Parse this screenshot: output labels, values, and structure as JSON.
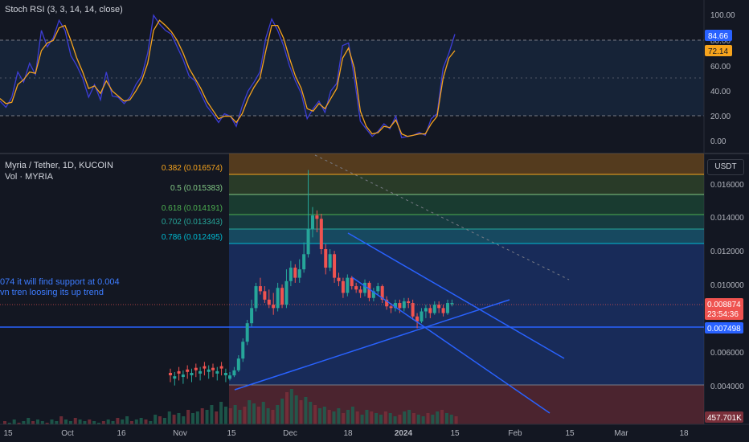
{
  "indicator": {
    "title": "Stoch RSI (3, 3, 14, 14, close)",
    "k_value": "84.66",
    "d_value": "72.14",
    "scale": [
      "100.00",
      "80.00",
      "60.00",
      "40.00",
      "20.00",
      "0.00"
    ]
  },
  "main": {
    "title": "Myria / Tether, 1D, KUCOIN",
    "volume_label": "Vol · MYRIA",
    "currency_button": "USDT",
    "price_scale": [
      "0.016000",
      "0.014000",
      "0.012000",
      "0.010000",
      "0.008000",
      "0.006000",
      "0.004000"
    ],
    "last_price": "0.008874",
    "countdown": "23:54:36",
    "support_price": "0.007498",
    "volume_value": "457.701K",
    "note_line1": "074 it will find support at 0.004",
    "note_line2": "vn tren loosing its up trend"
  },
  "fib_levels": [
    {
      "ratio": "0.382",
      "price": "0.016574",
      "label": "0.382 (0.016574)",
      "color": "#f7a41d"
    },
    {
      "ratio": "0.5",
      "price": "0.015383",
      "label": "0.5 (0.015383)",
      "color": "#81c784"
    },
    {
      "ratio": "0.618",
      "price": "0.014191",
      "label": "0.618 (0.014191)",
      "color": "#4caf50"
    },
    {
      "ratio": "0.702",
      "price": "0.013343",
      "label": "0.702 (0.013343)",
      "color": "#26a69a"
    },
    {
      "ratio": "0.786",
      "price": "0.012495",
      "label": "0.786 (0.012495)",
      "color": "#00bcd4"
    }
  ],
  "time_axis": [
    "15",
    "Oct",
    "16",
    "Nov",
    "15",
    "Dec",
    "18",
    "2024",
    "15",
    "Feb",
    "15",
    "Mar",
    "18"
  ],
  "colors": {
    "up": "#26a69a",
    "down": "#ef5350",
    "trendline": "#2962ff",
    "k_line": "#3d3dd6",
    "d_line": "#f7a41d"
  },
  "chart_data": [
    {
      "type": "line",
      "title": "Stoch RSI (3, 3, 14, 14, close)",
      "ylim": [
        0,
        100
      ],
      "series": [
        {
          "name": "K",
          "values": [
            32,
            27,
            35,
            55,
            47,
            62,
            53,
            88,
            75,
            82,
            96,
            88,
            68,
            60,
            50,
            35,
            45,
            33,
            55,
            36,
            35,
            30,
            35,
            45,
            52,
            70,
            100,
            93,
            88,
            85,
            75,
            65,
            52,
            48,
            38,
            28,
            22,
            15,
            22,
            20,
            12,
            28,
            40,
            47,
            55,
            82,
            97,
            88,
            76,
            60,
            48,
            38,
            18,
            26,
            32,
            23,
            40,
            46,
            76,
            78,
            50,
            16,
            10,
            4,
            8,
            14,
            10,
            20,
            3,
            4,
            5,
            7,
            5,
            18,
            22,
            58,
            70,
            85
          ]
        },
        {
          "name": "D",
          "values": [
            34,
            30,
            31,
            45,
            49,
            55,
            54,
            72,
            78,
            80,
            90,
            92,
            80,
            66,
            55,
            42,
            44,
            38,
            48,
            40,
            36,
            32,
            33,
            40,
            48,
            62,
            88,
            96,
            92,
            87,
            80,
            70,
            58,
            50,
            42,
            32,
            25,
            18,
            20,
            20,
            15,
            22,
            34,
            43,
            50,
            72,
            92,
            92,
            82,
            66,
            52,
            42,
            26,
            24,
            30,
            26,
            34,
            42,
            66,
            74,
            58,
            24,
            12,
            6,
            7,
            12,
            11,
            17,
            6,
            4,
            5,
            6,
            6,
            14,
            20,
            50,
            66,
            72
          ]
        }
      ]
    },
    {
      "type": "candlestick",
      "title": "Myria / Tether, 1D, KUCOIN",
      "ylabel": "USDT",
      "ylim": [
        0.0033,
        0.0178
      ],
      "x": [
        "2023-11-24",
        "2023-11-25",
        "2023-11-26",
        "2023-11-27",
        "2023-11-28",
        "2023-11-29",
        "2023-11-30",
        "2023-12-01",
        "2023-12-02",
        "2023-12-03",
        "2023-12-04",
        "2023-12-05",
        "2023-12-06",
        "2023-12-07",
        "2023-12-08",
        "2023-12-09",
        "2023-12-10",
        "2023-12-11",
        "2023-12-12",
        "2023-12-13",
        "2023-12-14",
        "2023-12-15",
        "2023-12-16",
        "2023-12-17",
        "2023-12-18",
        "2023-12-19",
        "2023-12-20",
        "2023-12-21",
        "2023-12-22",
        "2023-12-23",
        "2023-12-24",
        "2023-12-25",
        "2023-12-26",
        "2023-12-27",
        "2023-12-28",
        "2023-12-29",
        "2023-12-30",
        "2023-12-31",
        "2024-01-01",
        "2024-01-02",
        "2024-01-03",
        "2024-01-04",
        "2024-01-05",
        "2024-01-06",
        "2024-01-07",
        "2024-01-08",
        "2024-01-09",
        "2024-01-10",
        "2024-01-11",
        "2024-01-12",
        "2024-01-13",
        "2024-01-14"
      ],
      "open": [
        0.0044,
        0.0046,
        0.0049,
        0.0056,
        0.0066,
        0.0077,
        0.0086,
        0.0099,
        0.0096,
        0.0091,
        0.0088,
        0.0086,
        0.0098,
        0.0088,
        0.0102,
        0.011,
        0.0104,
        0.0109,
        0.0118,
        0.0133,
        0.0141,
        0.0139,
        0.0121,
        0.011,
        0.0118,
        0.0104,
        0.0102,
        0.0095,
        0.0104,
        0.0099,
        0.0097,
        0.0095,
        0.0101,
        0.0092,
        0.0096,
        0.0099,
        0.0091,
        0.0087,
        0.0086,
        0.0089,
        0.0086,
        0.009,
        0.0089,
        0.0081,
        0.0078,
        0.0084,
        0.0086,
        0.0083,
        0.0088,
        0.0086,
        0.0083,
        0.0089
      ],
      "close": [
        0.0046,
        0.0049,
        0.0056,
        0.0066,
        0.0077,
        0.0086,
        0.0099,
        0.0096,
        0.0091,
        0.0088,
        0.0086,
        0.0098,
        0.0088,
        0.0102,
        0.011,
        0.0104,
        0.0109,
        0.0118,
        0.0133,
        0.0141,
        0.0139,
        0.0121,
        0.011,
        0.0118,
        0.0104,
        0.0102,
        0.0095,
        0.0104,
        0.0099,
        0.0097,
        0.0095,
        0.0101,
        0.0092,
        0.0096,
        0.0099,
        0.0091,
        0.0087,
        0.0086,
        0.0089,
        0.0086,
        0.009,
        0.0089,
        0.0081,
        0.0078,
        0.0084,
        0.0086,
        0.0083,
        0.0088,
        0.0086,
        0.0083,
        0.0089,
        0.0089
      ],
      "high": [
        0.0048,
        0.0051,
        0.0058,
        0.0068,
        0.0079,
        0.0091,
        0.0101,
        0.0104,
        0.0099,
        0.0097,
        0.0095,
        0.0101,
        0.01,
        0.0109,
        0.0114,
        0.0112,
        0.0115,
        0.0125,
        0.0168,
        0.0146,
        0.0144,
        0.0142,
        0.0124,
        0.0121,
        0.012,
        0.0107,
        0.0104,
        0.0106,
        0.0105,
        0.0101,
        0.0099,
        0.0103,
        0.0102,
        0.0098,
        0.0101,
        0.01,
        0.0093,
        0.0089,
        0.0091,
        0.0091,
        0.0092,
        0.0092,
        0.0091,
        0.0083,
        0.0086,
        0.0088,
        0.0088,
        0.009,
        0.009,
        0.0088,
        0.0091,
        0.0091
      ],
      "low": [
        0.0043,
        0.0045,
        0.0048,
        0.0054,
        0.0064,
        0.0075,
        0.0084,
        0.0094,
        0.0089,
        0.0086,
        0.0082,
        0.0084,
        0.0086,
        0.0086,
        0.0099,
        0.0101,
        0.0101,
        0.0107,
        0.0116,
        0.0128,
        0.0131,
        0.0118,
        0.0106,
        0.0108,
        0.0101,
        0.0099,
        0.0092,
        0.0093,
        0.0097,
        0.0095,
        0.0092,
        0.0093,
        0.009,
        0.009,
        0.0094,
        0.0089,
        0.0085,
        0.0083,
        0.0084,
        0.0083,
        0.0084,
        0.0086,
        0.0079,
        0.0074,
        0.0077,
        0.008,
        0.008,
        0.0082,
        0.0083,
        0.0081,
        0.0082,
        0.0087
      ]
    }
  ]
}
